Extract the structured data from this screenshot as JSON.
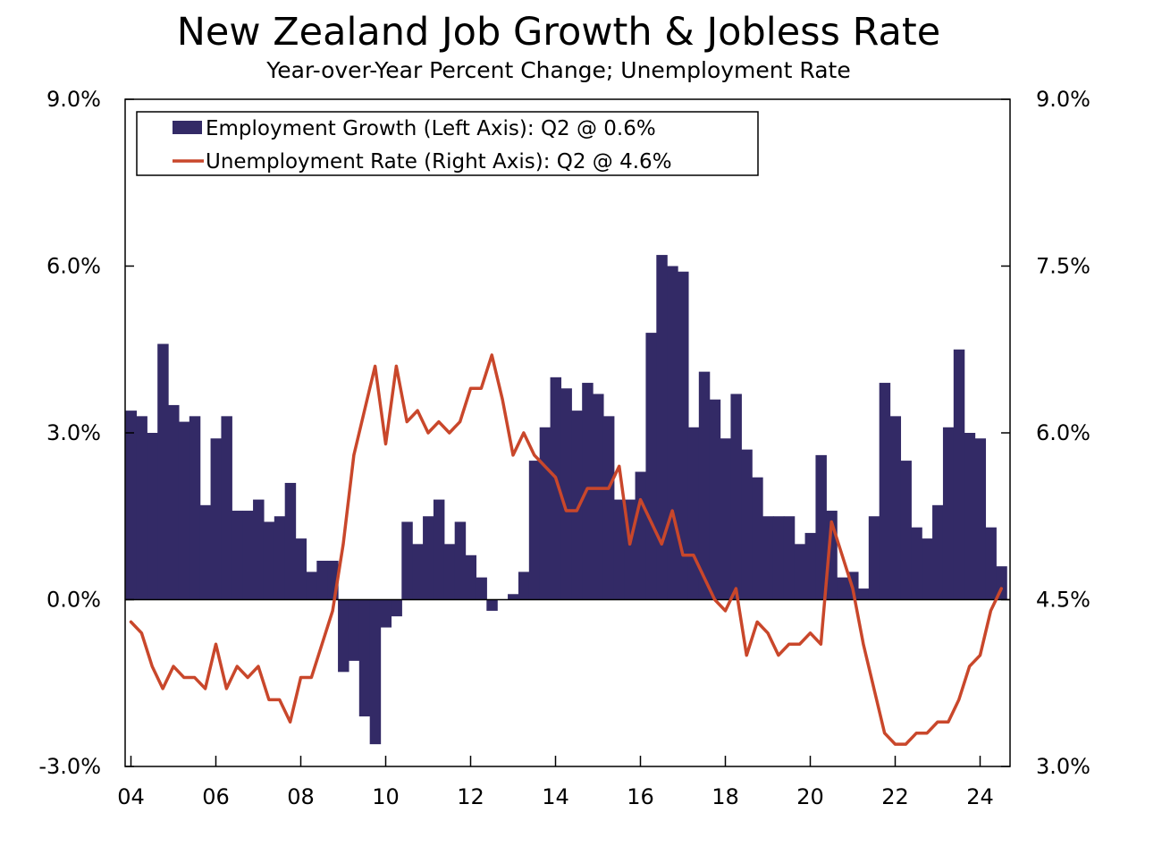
{
  "chart_data": {
    "type": "bar+line",
    "title": "New Zealand Job Growth & Jobless Rate",
    "subtitle": "Year-over-Year Percent Change; Unemployment Rate",
    "x_start": 2004.0,
    "x_step": 0.25,
    "x_tick_values": [
      2004,
      2006,
      2008,
      2010,
      2012,
      2014,
      2016,
      2018,
      2020,
      2022,
      2024
    ],
    "x_tick_labels": [
      "04",
      "06",
      "08",
      "10",
      "12",
      "14",
      "16",
      "18",
      "20",
      "22",
      "24"
    ],
    "left_axis": {
      "ylim": [
        -3.0,
        9.0
      ],
      "ticks": [
        -3.0,
        0.0,
        3.0,
        6.0,
        9.0
      ],
      "tick_labels": [
        "-3.0%",
        "0.0%",
        "3.0%",
        "6.0%",
        "9.0%"
      ]
    },
    "right_axis": {
      "ylim": [
        3.0,
        9.0
      ],
      "ticks": [
        3.0,
        4.5,
        6.0,
        7.5,
        9.0
      ],
      "tick_labels": [
        "3.0%",
        "4.5%",
        "6.0%",
        "7.5%",
        "9.0%"
      ]
    },
    "legend_position": "top-left",
    "colors": {
      "bar": "#332a66",
      "line": "#c9472b"
    },
    "series": [
      {
        "name": "Employment Growth (Left Axis): Q2 @ 0.6%",
        "type": "bar",
        "axis": "left",
        "values": [
          3.4,
          3.3,
          3.0,
          4.6,
          3.5,
          3.2,
          3.3,
          1.7,
          2.9,
          3.3,
          1.6,
          1.6,
          1.8,
          1.4,
          1.5,
          2.1,
          1.1,
          0.5,
          0.7,
          0.7,
          -1.3,
          -1.1,
          -2.1,
          -2.6,
          -0.5,
          -0.3,
          1.4,
          1.0,
          1.5,
          1.8,
          1.0,
          1.4,
          0.8,
          0.4,
          -0.2,
          0.0,
          0.1,
          0.5,
          2.5,
          3.1,
          4.0,
          3.8,
          3.4,
          3.9,
          3.7,
          3.3,
          1.8,
          1.8,
          2.3,
          4.8,
          6.2,
          6.0,
          5.9,
          3.1,
          4.1,
          3.6,
          2.9,
          3.7,
          2.7,
          2.2,
          1.5,
          1.5,
          1.5,
          1.0,
          1.2,
          2.6,
          1.6,
          0.4,
          0.5,
          0.2,
          1.5,
          3.9,
          3.3,
          2.5,
          1.3,
          1.1,
          1.7,
          3.1,
          4.5,
          3.0,
          2.9,
          1.3,
          0.6
        ]
      },
      {
        "name": "Unemployment Rate (Right Axis): Q2 @ 4.6%",
        "type": "line",
        "axis": "right",
        "values": [
          4.3,
          4.2,
          3.9,
          3.7,
          3.9,
          3.8,
          3.8,
          3.7,
          4.1,
          3.7,
          3.9,
          3.8,
          3.9,
          3.6,
          3.6,
          3.4,
          3.8,
          3.8,
          4.1,
          4.4,
          5.0,
          5.8,
          6.2,
          6.6,
          5.9,
          6.6,
          6.1,
          6.2,
          6.0,
          6.1,
          6.0,
          6.1,
          6.4,
          6.4,
          6.7,
          6.3,
          5.8,
          6.0,
          5.8,
          5.7,
          5.6,
          5.3,
          5.3,
          5.5,
          5.5,
          5.5,
          5.7,
          5.0,
          5.4,
          5.2,
          5.0,
          5.3,
          4.9,
          4.9,
          4.7,
          4.5,
          4.4,
          4.6,
          4.0,
          4.3,
          4.2,
          4.0,
          4.1,
          4.1,
          4.2,
          4.1,
          5.2,
          4.9,
          4.6,
          4.1,
          3.7,
          3.3,
          3.2,
          3.2,
          3.3,
          3.3,
          3.4,
          3.4,
          3.6,
          3.9,
          4.0,
          4.4,
          4.6
        ]
      }
    ]
  }
}
